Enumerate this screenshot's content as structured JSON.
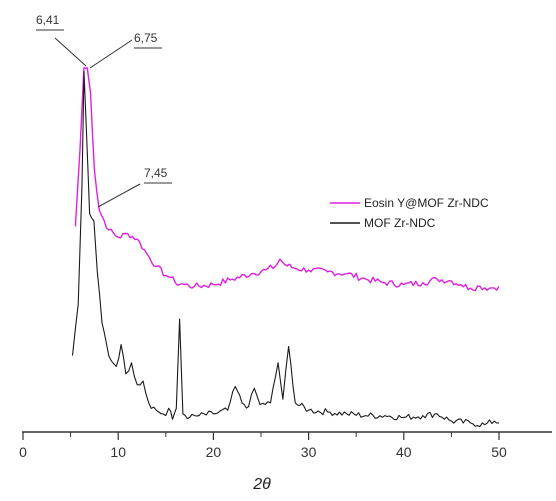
{
  "chart_data": {
    "type": "line",
    "xlabel": "2θ",
    "ylabel": "",
    "xlim": [
      0,
      55
    ],
    "x_ticks": [
      0,
      10,
      20,
      30,
      40,
      50
    ],
    "x_tick_labels": [
      "0",
      "10",
      "20",
      "30",
      "40",
      "50"
    ],
    "grid": false,
    "legend_position": "right",
    "annotations": [
      "6,41",
      "6,75",
      "7,45"
    ],
    "series": [
      {
        "name": "Eosin Y@MOF Zr-NDC",
        "color": "#e020e0",
        "x": [
          5.5,
          6.0,
          6.4,
          6.75,
          7.1,
          7.5,
          8.0,
          9.0,
          10.0,
          11.0,
          12.0,
          13.0,
          14.0,
          15.0,
          15.5,
          16.0,
          17.0,
          18.0,
          20.0,
          22.0,
          24.0,
          25.5,
          26.5,
          27.0,
          27.5,
          28.5,
          30.0,
          32.0,
          34.0,
          36.0,
          38.0,
          40.0,
          42.0,
          43.5,
          45.0,
          46.0,
          47.0,
          48.0,
          49.0,
          50.0
        ],
        "y": [
          0.565,
          0.78,
          1.0,
          1.0,
          0.93,
          0.72,
          0.61,
          0.555,
          0.535,
          0.545,
          0.53,
          0.49,
          0.455,
          0.43,
          0.425,
          0.41,
          0.405,
          0.4,
          0.405,
          0.42,
          0.435,
          0.445,
          0.455,
          0.475,
          0.46,
          0.45,
          0.445,
          0.44,
          0.435,
          0.42,
          0.41,
          0.405,
          0.41,
          0.42,
          0.415,
          0.405,
          0.395,
          0.4,
          0.395,
          0.4
        ]
      },
      {
        "name": "MOF Zr-NDC",
        "color": "#1a1a1a",
        "x": [
          5.2,
          5.8,
          6.2,
          6.41,
          6.6,
          7.0,
          7.45,
          7.8,
          8.3,
          9.0,
          9.8,
          10.3,
          10.8,
          11.4,
          12.0,
          12.6,
          13.2,
          14.0,
          15.0,
          15.3,
          15.7,
          16.1,
          16.45,
          16.8,
          17.5,
          18.5,
          20.0,
          21.5,
          22.3,
          23.0,
          23.7,
          24.3,
          24.9,
          26.0,
          26.8,
          27.3,
          27.9,
          28.6,
          30.0,
          32.0,
          34.0,
          36.0,
          38.0,
          40.0,
          42.0,
          43.5,
          45.0,
          47.0,
          48.5,
          49.5,
          50.0
        ],
        "y": [
          0.21,
          0.35,
          0.68,
          0.99,
          0.87,
          0.6,
          0.58,
          0.44,
          0.3,
          0.21,
          0.18,
          0.24,
          0.16,
          0.19,
          0.13,
          0.14,
          0.08,
          0.06,
          0.045,
          0.065,
          0.035,
          0.065,
          0.31,
          0.05,
          0.04,
          0.045,
          0.05,
          0.06,
          0.125,
          0.08,
          0.07,
          0.12,
          0.075,
          0.08,
          0.19,
          0.09,
          0.235,
          0.08,
          0.06,
          0.055,
          0.05,
          0.045,
          0.045,
          0.04,
          0.045,
          0.05,
          0.03,
          0.025,
          0.02,
          0.03,
          0.025
        ]
      }
    ]
  }
}
